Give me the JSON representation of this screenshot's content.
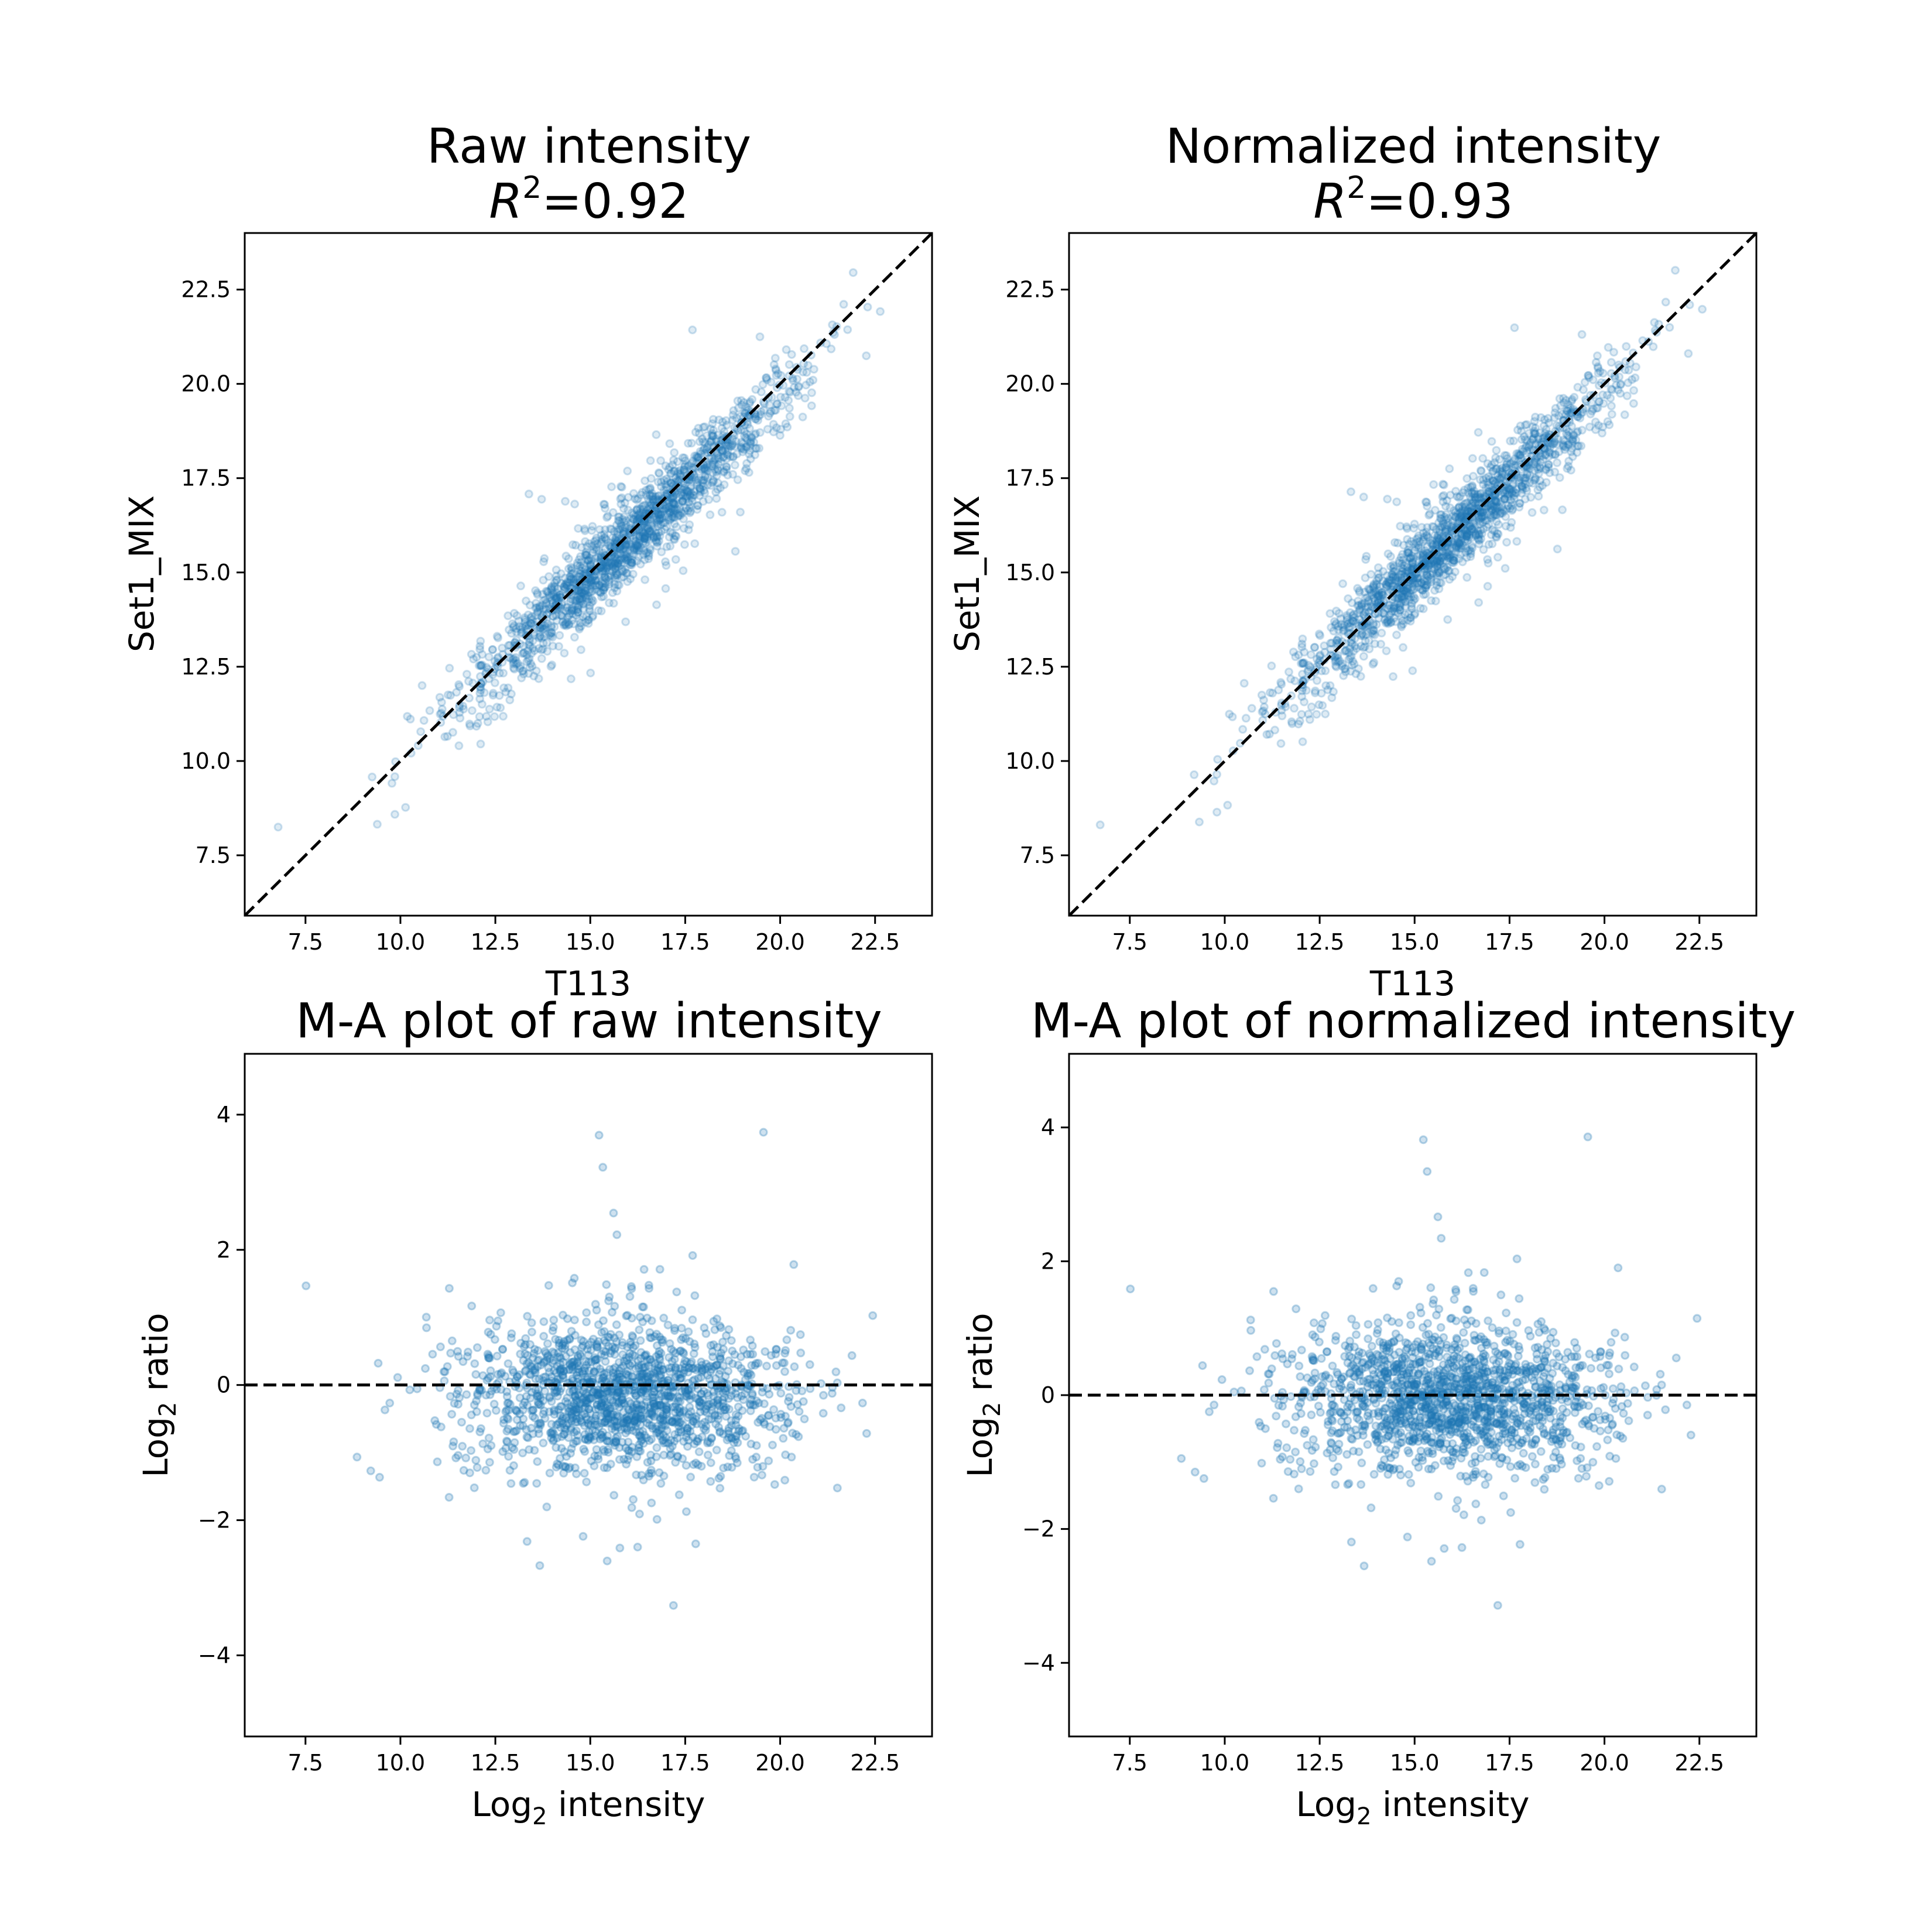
{
  "chart_data": [
    {
      "type": "scatter",
      "title_line1": "Raw intensity",
      "title_r2": "=0.92",
      "xlabel": "T113",
      "ylabel": "Set1_MIX",
      "xlim": [
        5.9,
        24.0
      ],
      "ylim": [
        5.9,
        24.0
      ],
      "xticks": [
        "7.5",
        "10.0",
        "12.5",
        "15.0",
        "17.5",
        "20.0",
        "22.5"
      ],
      "yticks": [
        "7.5",
        "10.0",
        "12.5",
        "15.0",
        "17.5",
        "20.0",
        "22.5"
      ],
      "reference_line": "y = x",
      "r_squared": 0.92,
      "points_estimated": 9000,
      "color": "#1f77b4"
    },
    {
      "type": "scatter",
      "title_line1": "Normalized intensity",
      "title_r2": "=0.93",
      "xlabel": "T113",
      "ylabel": "Set1_MIX",
      "xlim": [
        5.9,
        24.0
      ],
      "ylim": [
        5.9,
        24.0
      ],
      "xticks": [
        "7.5",
        "10.0",
        "12.5",
        "15.0",
        "17.5",
        "20.0",
        "22.5"
      ],
      "yticks": [
        "7.5",
        "10.0",
        "12.5",
        "15.0",
        "17.5",
        "20.0",
        "22.5"
      ],
      "reference_line": "y = x",
      "r_squared": 0.93,
      "points_estimated": 9000,
      "color": "#1f77b4"
    },
    {
      "type": "scatter",
      "title": "M-A plot of raw intensity",
      "xlabel_prefix": "Log",
      "xlabel_sub": "2",
      "xlabel_suffix": " intensity",
      "ylabel_prefix": "Log",
      "ylabel_sub": "2",
      "ylabel_suffix": " ratio",
      "xlim": [
        5.9,
        24.0
      ],
      "ylim": [
        -5.2,
        4.9
      ],
      "xticks": [
        "7.5",
        "10.0",
        "12.5",
        "15.0",
        "17.5",
        "20.0",
        "22.5"
      ],
      "yticks": [
        "4",
        "2",
        "0",
        "−2",
        "−4"
      ],
      "reference_line": "y = 0",
      "points_estimated": 9000,
      "color": "#1f77b4"
    },
    {
      "type": "scatter",
      "title": "M-A plot of normalized intensity",
      "xlabel_prefix": "Log",
      "xlabel_sub": "2",
      "xlabel_suffix": " intensity",
      "ylabel_prefix": "Log",
      "ylabel_sub": "2",
      "ylabel_suffix": " ratio",
      "xlim": [
        5.9,
        24.0
      ],
      "ylim": [
        -5.1,
        5.1
      ],
      "xticks": [
        "7.5",
        "10.0",
        "12.5",
        "15.0",
        "17.5",
        "20.0",
        "22.5"
      ],
      "yticks": [
        "4",
        "2",
        "0",
        "−2",
        "−4"
      ],
      "reference_line": "y = 0",
      "points_estimated": 9000,
      "color": "#1f77b4"
    }
  ]
}
